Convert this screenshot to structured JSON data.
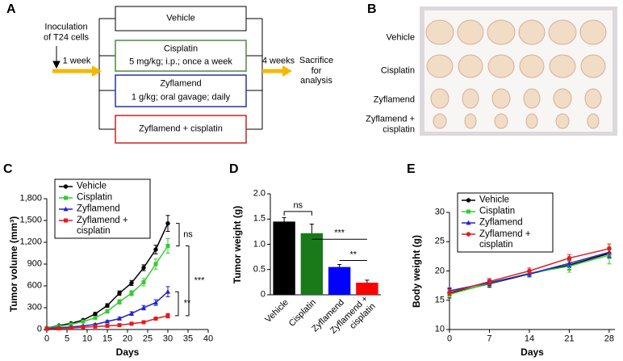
{
  "panel_labels": [
    "A",
    "B",
    "C",
    "D",
    "E"
  ],
  "diagram": {
    "inoculation": "Inoculation\nof T24 cells",
    "first_interval": "1 week",
    "groups": [
      {
        "name": "Vehicle"
      },
      {
        "name": "Cisplatin",
        "regimen": "5 mg/kg; i.p.; once a week"
      },
      {
        "name": "Zyflamend",
        "regimen": "1 g/kg; oral gavage; daily"
      },
      {
        "name": "Zyflamend + cisplatin"
      }
    ],
    "second_interval": "4 weeks",
    "endpoint": "Sacrifice\nfor\nanalysis"
  },
  "photo": {
    "row_labels": [
      "Vehicle",
      "Cisplatin",
      "Zyflamend",
      "Zyflamend +\ncisplatin"
    ]
  },
  "chart_data": [
    {
      "type": "line",
      "y_label": "Tumor volume (mm³)",
      "x_label": "Days",
      "legend": "upper left",
      "x": [
        0,
        3,
        6,
        9,
        12,
        15,
        18,
        21,
        24,
        27,
        30
      ],
      "xlim": [
        0,
        40
      ],
      "xticks": [
        0,
        5,
        10,
        15,
        20,
        25,
        30,
        35,
        40
      ],
      "ylim": [
        0,
        1800
      ],
      "yticks": [
        0,
        300,
        600,
        900,
        {
          "value": 1200,
          "label": "1,200"
        },
        {
          "value": 1500,
          "label": "1,500"
        },
        {
          "value": 1800,
          "label": "1,800"
        }
      ],
      "series": [
        {
          "name": "Vehicle",
          "color": "#000000",
          "marker": "circle",
          "values": [
            20,
            55,
            85,
            130,
            215,
            330,
            500,
            640,
            850,
            1100,
            1460
          ],
          "errors": [
            5,
            10,
            10,
            15,
            20,
            25,
            30,
            35,
            40,
            60,
            110
          ]
        },
        {
          "name": "Cisplatin",
          "color": "#33cc33",
          "marker": "square",
          "values": [
            20,
            45,
            70,
            110,
            160,
            250,
            380,
            500,
            650,
            900,
            1150
          ],
          "errors": [
            5,
            8,
            10,
            15,
            20,
            25,
            30,
            35,
            50,
            70,
            100
          ]
        },
        {
          "name": "Zyflamend",
          "color": "#2222cc",
          "marker": "triangle",
          "values": [
            15,
            25,
            35,
            50,
            70,
            110,
            150,
            220,
            300,
            370,
            520
          ],
          "errors": [
            3,
            5,
            5,
            8,
            10,
            15,
            20,
            25,
            30,
            40,
            70
          ]
        },
        {
          "name": "Zyflamend +\ncisplatin",
          "color": "#e41a1c",
          "marker": "square",
          "values": [
            10,
            15,
            20,
            30,
            40,
            50,
            60,
            80,
            100,
            150,
            190
          ],
          "errors": [
            2,
            3,
            3,
            5,
            5,
            8,
            8,
            10,
            15,
            20,
            30
          ]
        }
      ],
      "annotations": [
        "ns",
        "***",
        "**"
      ]
    },
    {
      "type": "bar",
      "y_label": "Tumor weight (g)",
      "categories": [
        "Vehicle",
        "Cisplatin",
        "Zyflamend",
        "Zyflamend +\ncisplatin"
      ],
      "values": [
        1.45,
        1.22,
        0.55,
        0.24
      ],
      "errors": [
        0.08,
        0.18,
        0.05,
        0.05
      ],
      "colors": [
        "#000000",
        "#1a7a1a",
        "#0000ff",
        "#ff0000"
      ],
      "ylim": [
        0,
        2
      ],
      "yticks": [
        0,
        0.5,
        {
          "value": 1,
          "label": "1.0"
        },
        1.5,
        {
          "value": 2,
          "label": "2.0"
        }
      ],
      "annotations": [
        "ns",
        "***",
        "**"
      ]
    },
    {
      "type": "line",
      "y_label": "Body weight (g)",
      "x_label": "Days",
      "legend": "upper left",
      "x": [
        0,
        7,
        14,
        21,
        28
      ],
      "xlim": [
        0,
        29
      ],
      "xticks": [
        0,
        7,
        14,
        21,
        28
      ],
      "ylim": [
        10,
        30
      ],
      "yticks": [
        10,
        15,
        20,
        25,
        30
      ],
      "series": [
        {
          "name": "Vehicle",
          "color": "#000000",
          "marker": "circle",
          "values": [
            16.2,
            17.8,
            19.5,
            21.0,
            23.0
          ],
          "errors": [
            0.8,
            0.6,
            0.5,
            0.8,
            0.8
          ]
        },
        {
          "name": "Cisplatin",
          "color": "#33cc33",
          "marker": "square",
          "values": [
            16.0,
            17.9,
            19.6,
            20.8,
            22.7
          ],
          "errors": [
            0.5,
            0.5,
            0.6,
            1.0,
            1.5
          ]
        },
        {
          "name": "Zyflamend",
          "color": "#2222cc",
          "marker": "triangle",
          "values": [
            16.6,
            18.0,
            19.5,
            21.3,
            23.2
          ],
          "errors": [
            0.5,
            0.5,
            0.5,
            0.6,
            0.8
          ]
        },
        {
          "name": "Zyflamend +\ncisplatin",
          "color": "#e41a1c",
          "marker": "circle",
          "values": [
            16.3,
            18.2,
            20.0,
            22.2,
            23.8
          ],
          "errors": [
            0.5,
            0.5,
            0.5,
            0.6,
            0.8
          ]
        }
      ]
    }
  ]
}
